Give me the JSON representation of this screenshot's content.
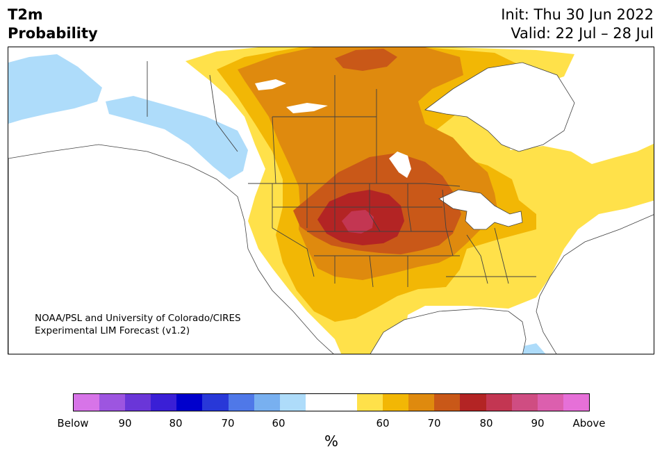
{
  "header": {
    "title_line1": "T2m",
    "title_line2": "Probability",
    "init_text": "Init: Thu 30 Jun 2022",
    "valid_text": "Valid: 22 Jul – 28 Jul"
  },
  "map": {
    "region": "North America",
    "credit_line1": "NOAA/PSL and University of Colorado/CIRES",
    "credit_line2": "Experimental LIM Forecast (v1.2)"
  },
  "colorbar": {
    "unit": "%",
    "colors": [
      "#d774e8",
      "#9d55e0",
      "#6a36d8",
      "#3a1fd6",
      "#0000cc",
      "#2838d8",
      "#4f78e8",
      "#78b0f0",
      "#aedcfa",
      "#ffffff",
      "#ffffff",
      "#ffe14a",
      "#f2b705",
      "#df8a0e",
      "#c95818",
      "#b32424",
      "#c33652",
      "#cf4d82",
      "#dc5fae",
      "#e670d8"
    ],
    "tick_labels": [
      "Below",
      "90",
      "80",
      "70",
      "60",
      "60",
      "70",
      "80",
      "90",
      "Above"
    ]
  },
  "colors": {
    "cold_60": "#aedcfa",
    "warm_60": "#ffe14a",
    "warm_65": "#f2b705",
    "warm_70": "#df8a0e",
    "warm_75": "#c95818",
    "warm_80": "#b32424",
    "warm_85": "#c33652",
    "border": "#404040"
  }
}
